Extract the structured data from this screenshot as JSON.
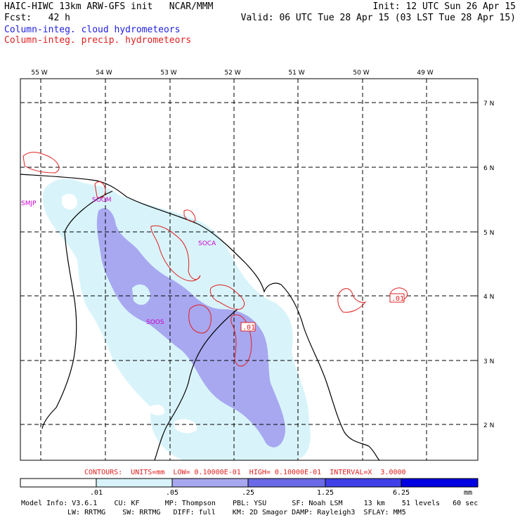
{
  "header": {
    "title": "HAIC-HIWC 13km ARW-GFS init   NCAR/MMM",
    "init": "Init: 12 UTC Sun 26 Apr 15",
    "fcst": "Fcst:   42 h",
    "valid": "Valid: 06 UTC Tue 28 Apr 15 (03 LST Tue 28 Apr 15)",
    "legend_cloud": "Column-integ. cloud hydrometeors",
    "legend_precip": "Column-integ. precip. hydrometeors"
  },
  "map": {
    "lon_labels": [
      "55 W",
      "54 W",
      "53 W",
      "52 W",
      "51 W",
      "50 W",
      "49 W"
    ],
    "lat_labels": [
      "7 N",
      "6 N",
      "5 N",
      "4 N",
      "3 N",
      "2 N"
    ],
    "station_labels": [
      "SMJP",
      "SOGM",
      "SOCA",
      "SOOS"
    ],
    "contour_labels": [
      ".01",
      ".01"
    ],
    "colors": {
      "cloud_light": "#d8f4fa",
      "cloud_mid": "#a8a8f0",
      "precip": "#e02020",
      "coast": "#000000"
    }
  },
  "contours_line": "CONTOURS:  UNITS=mm  LOW= 0.10000E-01  HIGH= 0.10000E-01  INTERVAL=X  3.0000",
  "colorbar": {
    "ticks": [
      ".01",
      ".05",
      ".25",
      "1.25",
      "6.25"
    ],
    "units": "mm",
    "colors": [
      "#ffffff",
      "#d8f4fa",
      "#a8a8f0",
      "#6a6ae6",
      "#4040e8",
      "#0000e0"
    ]
  },
  "footer": {
    "line1": "Model Info: V3.6.1    CU: KF      MP: Thompson    PBL: YSU      SF: Noah LSM     13 km    51 levels   60 sec",
    "line2": "LW: RRTMG    SW: RRTMG   DIFF: full    KM: 2D Smagor DAMP: Rayleigh3  SFLAY: MM5"
  }
}
